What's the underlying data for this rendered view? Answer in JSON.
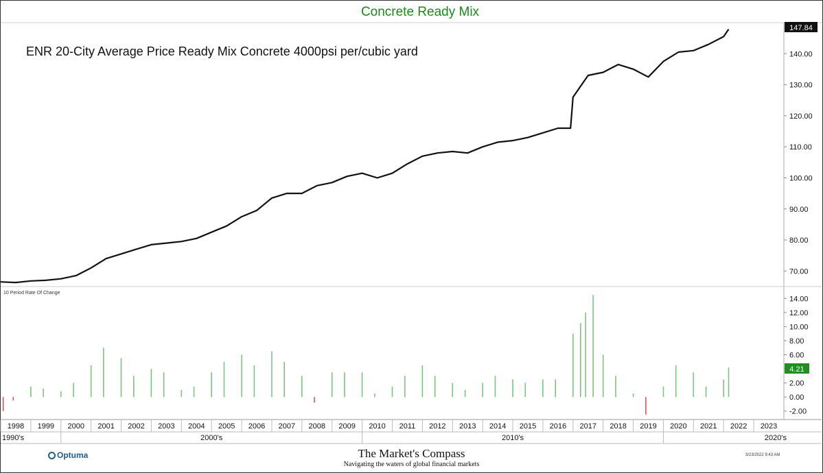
{
  "chart_data": {
    "type": "line",
    "title": "Concrete Ready Mix",
    "subtitle": "ENR 20-City Average Price Ready Mix Concrete 4000psi per/cubic yard",
    "last_value_label": "147.84",
    "y_ticks": [
      "70.00",
      "80.00",
      "90.00",
      "100.00",
      "110.00",
      "120.00",
      "130.00",
      "140.00"
    ],
    "ylim": [
      65,
      150
    ],
    "x_year_labels": [
      "1998",
      "1999",
      "2000",
      "2001",
      "2002",
      "2003",
      "2004",
      "2005",
      "2006",
      "2007",
      "2008",
      "2009",
      "2010",
      "2011",
      "2012",
      "2013",
      "2014",
      "2015",
      "2016",
      "2017",
      "2018",
      "2019",
      "2020",
      "2021",
      "2022",
      "2023"
    ],
    "x_decade_labels": [
      "1990's",
      "2000's",
      "2010's",
      "2020's"
    ],
    "series": [
      {
        "x": [
          "1998-01",
          "1998-07",
          "1999-01",
          "1999-07",
          "2000-01",
          "2000-07",
          "2001-01",
          "2001-07",
          "2002-01",
          "2002-07",
          "2003-01",
          "2003-07",
          "2004-01",
          "2004-07",
          "2005-01",
          "2005-07",
          "2006-01",
          "2006-07",
          "2007-01",
          "2007-07",
          "2008-01",
          "2008-07",
          "2009-01",
          "2009-07",
          "2010-01",
          "2010-07",
          "2011-01",
          "2011-07",
          "2012-01",
          "2012-07",
          "2013-01",
          "2013-07",
          "2014-01",
          "2014-07",
          "2015-01",
          "2015-07",
          "2016-01",
          "2016-07",
          "2016-12",
          "2017-01",
          "2017-07",
          "2018-01",
          "2018-07",
          "2019-01",
          "2019-07",
          "2020-01",
          "2020-07",
          "2021-01",
          "2021-07",
          "2022-01",
          "2022-03"
        ],
        "values": [
          66.5,
          66.3,
          66.8,
          67.0,
          67.5,
          68.5,
          71.0,
          74.0,
          75.5,
          77.0,
          78.5,
          79.0,
          79.5,
          80.5,
          82.5,
          84.5,
          87.5,
          89.5,
          93.5,
          95.0,
          95.0,
          97.5,
          98.5,
          100.5,
          101.5,
          100.0,
          101.5,
          104.5,
          107.0,
          108.0,
          108.5,
          108.0,
          110.0,
          111.5,
          112.0,
          113.0,
          114.5,
          116.0,
          116.0,
          126.0,
          133.0,
          134.0,
          136.5,
          135.0,
          132.5,
          137.5,
          140.5,
          141.0,
          143.0,
          145.5,
          147.84
        ]
      }
    ],
    "roc_panel": {
      "label": "10 Period Rate Of Change",
      "last_value_label": "4.21",
      "y_ticks": [
        "-2.00",
        "0.00",
        "2.00",
        "4.00",
        "6.00",
        "8.00",
        "10.00",
        "12.00",
        "14.00"
      ],
      "ylim": [
        -3,
        15
      ],
      "x": [
        "1998-02",
        "1998-06",
        "1999-01",
        "1999-06",
        "2000-01",
        "2000-06",
        "2001-01",
        "2001-06",
        "2002-01",
        "2002-06",
        "2003-01",
        "2003-06",
        "2004-01",
        "2004-06",
        "2005-01",
        "2005-06",
        "2006-01",
        "2006-06",
        "2007-01",
        "2007-06",
        "2008-01",
        "2008-06",
        "2009-01",
        "2009-06",
        "2010-01",
        "2010-06",
        "2011-01",
        "2011-06",
        "2012-01",
        "2012-06",
        "2013-01",
        "2013-06",
        "2014-01",
        "2014-06",
        "2015-01",
        "2015-06",
        "2016-01",
        "2016-06",
        "2017-01",
        "2017-04",
        "2017-06",
        "2017-09",
        "2018-01",
        "2018-06",
        "2019-01",
        "2019-06",
        "2020-01",
        "2020-06",
        "2021-01",
        "2021-06",
        "2022-01",
        "2022-03"
      ],
      "values": [
        -2.0,
        -0.5,
        1.5,
        1.2,
        0.8,
        2.0,
        4.5,
        7.0,
        5.5,
        3.0,
        4.0,
        3.5,
        1.0,
        1.5,
        3.5,
        5.0,
        6.0,
        4.5,
        6.5,
        5.0,
        3.0,
        -0.8,
        3.5,
        3.5,
        3.5,
        0.5,
        1.5,
        3.0,
        4.5,
        3.0,
        2.0,
        1.0,
        2.0,
        3.0,
        2.5,
        2.0,
        2.5,
        2.5,
        9.0,
        10.5,
        12.0,
        14.5,
        6.0,
        3.0,
        0.5,
        -2.5,
        1.5,
        4.5,
        3.5,
        1.5,
        2.5,
        4.21
      ]
    }
  },
  "footer": {
    "brand": "Optuma",
    "publisher": "The Market's Compass",
    "tagline": "Navigating the waters of global financial markets",
    "timestamp": "3/23/2022 9:43 AM"
  },
  "colors": {
    "title": "#1a8a1a",
    "line": "#111111",
    "pos_bar": "#7cc47c",
    "neg_bar": "#e05050",
    "badge_bg": "#1f8f1f",
    "brand": "#1f5c8a"
  }
}
